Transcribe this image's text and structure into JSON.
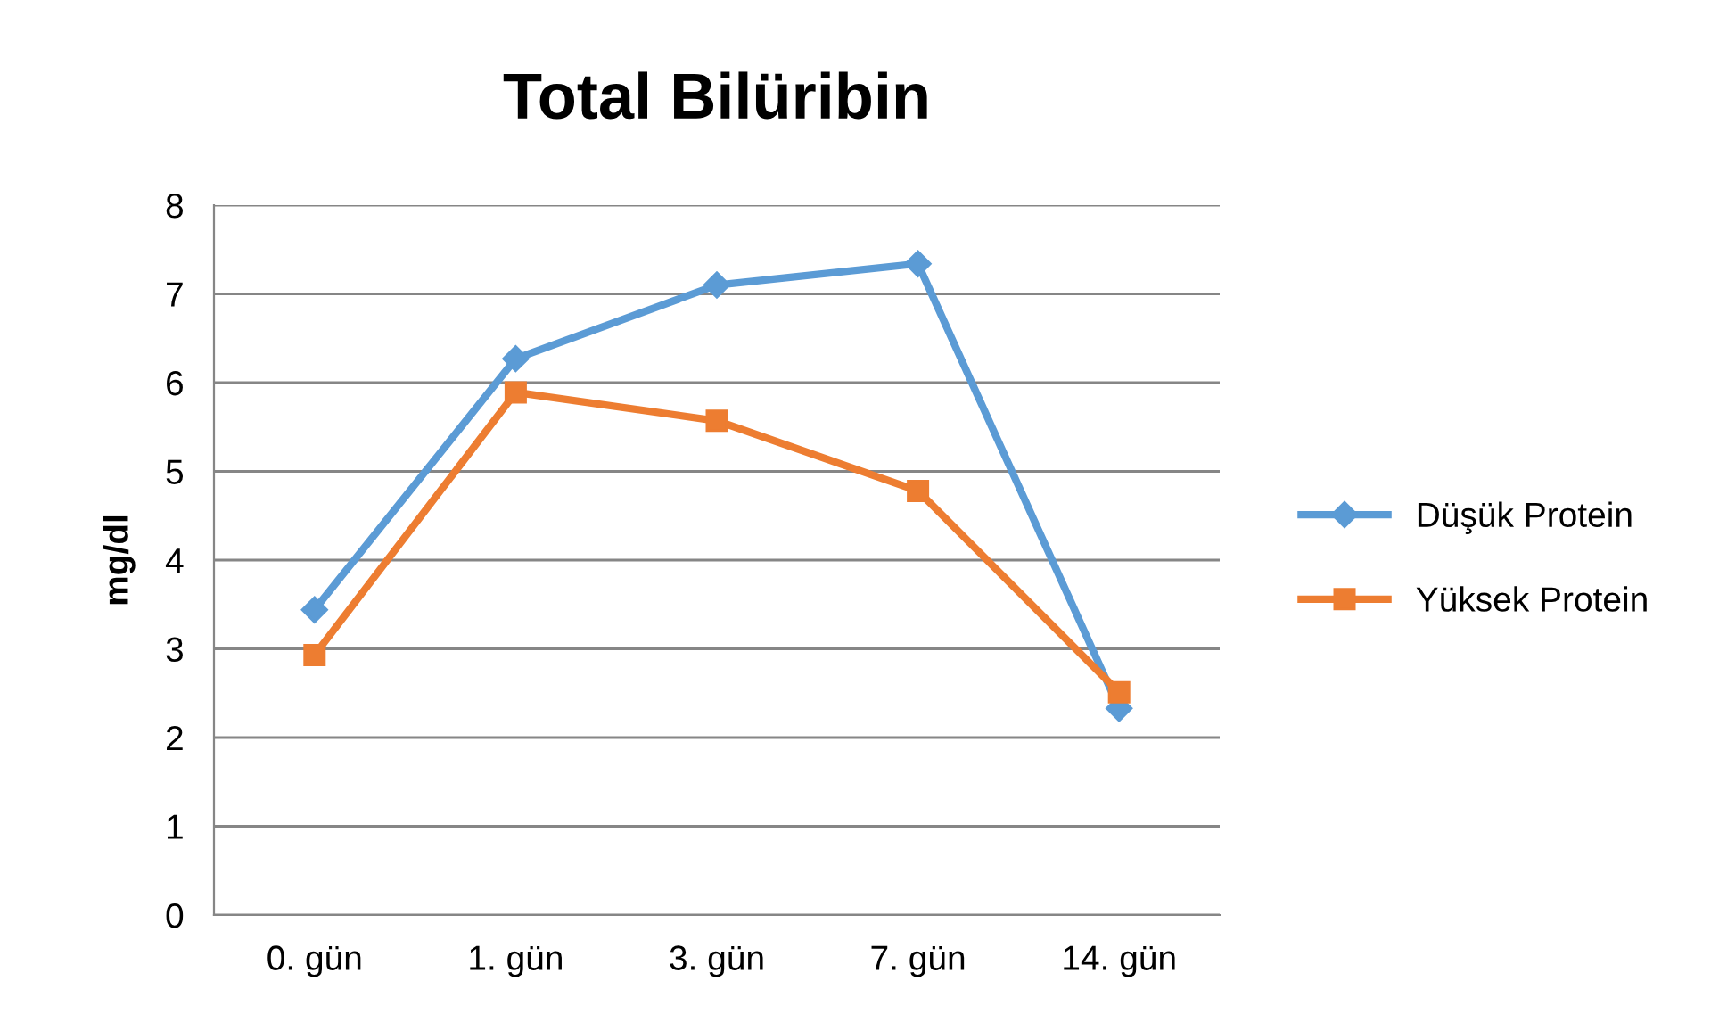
{
  "chart_data": {
    "type": "line",
    "title": "Total Bilüribin",
    "ylabel": "mg/dl",
    "categories": [
      "0. gün",
      "1. gün",
      "3. gün",
      "7. gün",
      "14. gün"
    ],
    "series": [
      {
        "name": "Düşük Protein",
        "color": "#5b9bd5",
        "marker": "diamond",
        "values": [
          3.44,
          6.27,
          7.1,
          7.34,
          2.33
        ]
      },
      {
        "name": "Yüksek Protein",
        "color": "#ed7d31",
        "marker": "square",
        "values": [
          2.93,
          5.89,
          5.57,
          4.78,
          2.51
        ]
      }
    ],
    "ylim": [
      0,
      8
    ],
    "yticks": [
      0,
      1,
      2,
      3,
      4,
      5,
      6,
      7,
      8
    ],
    "grid": "y",
    "legend": "right",
    "line_style": "solid"
  }
}
